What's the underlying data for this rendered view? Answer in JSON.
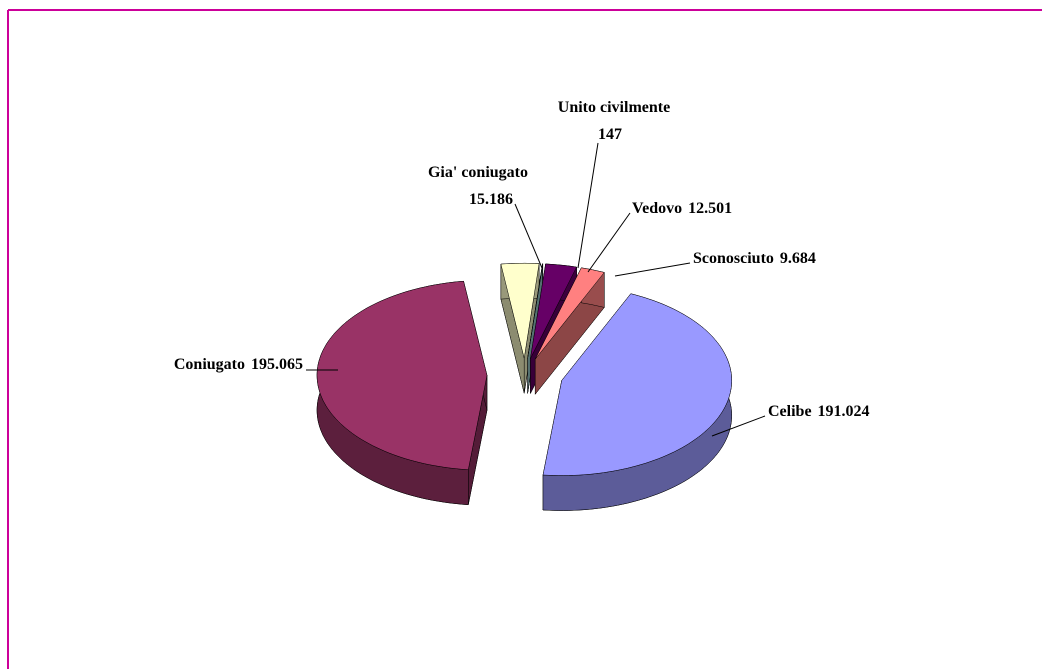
{
  "chart_data": {
    "type": "pie3d",
    "categories": [
      "Unito civilmente",
      "Vedovo",
      "Sconosciuto",
      "Celibe",
      "Coniugato",
      "Gia' coniugato"
    ],
    "values": [
      147,
      12501,
      9684,
      191024,
      195065,
      15186
    ],
    "value_labels": [
      "147",
      "12.501",
      "9.684",
      "191.024",
      "195.065",
      "15.186"
    ],
    "colors": [
      "#99cccc",
      "#660066",
      "#ff8080",
      "#9999ff",
      "#993366",
      "#ffffcc"
    ]
  }
}
